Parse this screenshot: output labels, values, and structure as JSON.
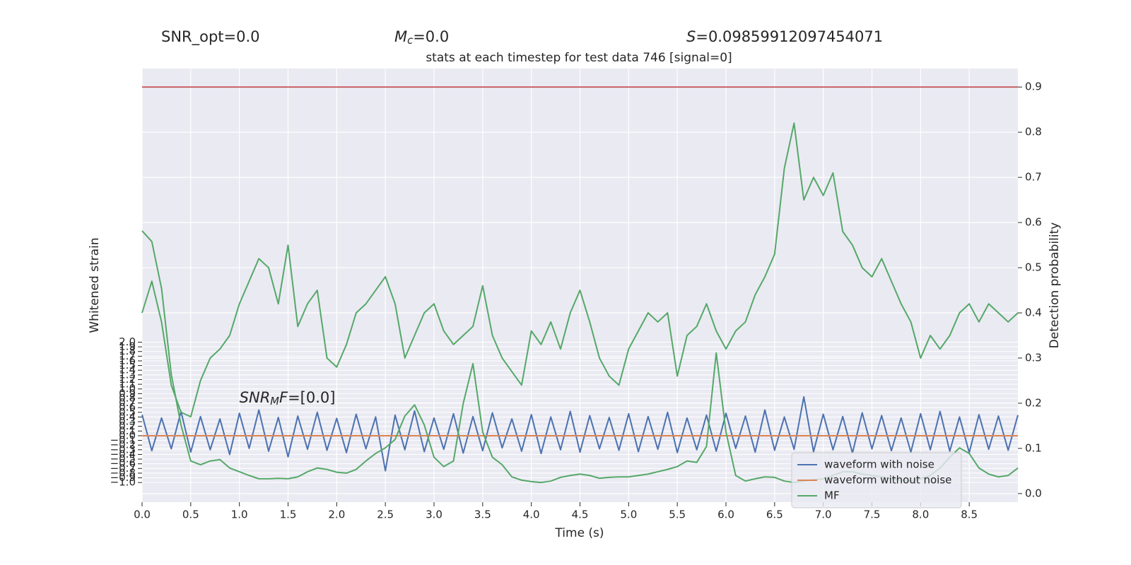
{
  "chart_data": {
    "type": "line",
    "title": "stats at each timestep for test data 746 [signal=0]",
    "header": [
      {
        "parts": [
          {
            "t": "SNR_opt=0.0"
          }
        ]
      },
      {
        "parts": [
          {
            "t": "M",
            "style": "italic"
          },
          {
            "t": "c",
            "style": "sub"
          },
          {
            "t": "=0.0"
          }
        ]
      },
      {
        "parts": [
          {
            "t": "S",
            "style": "italic"
          },
          {
            "t": "=0.09859912097454071"
          }
        ]
      }
    ],
    "annotation": {
      "parts": [
        {
          "t": "SNR",
          "style": "italic"
        },
        {
          "t": "M",
          "style": "sub"
        },
        {
          "t": "F",
          "style": "italic"
        },
        {
          "t": "=[0.0]"
        }
      ]
    },
    "xlabel": "Time (s)",
    "ylabel": "Whitened strain",
    "y2label": "Detection probability",
    "xlim": [
      0,
      9
    ],
    "ylim": [
      -1.42,
      7.85
    ],
    "y2lim": [
      -0.019,
      0.941
    ],
    "grid": true,
    "legend": "lower right",
    "xticks": [
      {
        "value": 0,
        "label": "0.0"
      },
      {
        "value": 0.5,
        "label": "0.5"
      },
      {
        "value": 1,
        "label": "1.0"
      },
      {
        "value": 1.5,
        "label": "1.5"
      },
      {
        "value": 2,
        "label": "2.0"
      },
      {
        "value": 2.5,
        "label": "2.5"
      },
      {
        "value": 3,
        "label": "3.0"
      },
      {
        "value": 3.5,
        "label": "3.5"
      },
      {
        "value": 4,
        "label": "4.0"
      },
      {
        "value": 4.5,
        "label": "4.5"
      },
      {
        "value": 5,
        "label": "5.0"
      },
      {
        "value": 5.5,
        "label": "5.5"
      },
      {
        "value": 6,
        "label": "6.0"
      },
      {
        "value": 6.5,
        "label": "6.5"
      },
      {
        "value": 7,
        "label": "7.0"
      },
      {
        "value": 7.5,
        "label": "7.5"
      },
      {
        "value": 8,
        "label": "8.0"
      },
      {
        "value": 8.5,
        "label": "8.5"
      }
    ],
    "yticks": [
      {
        "value": -1,
        "label": "−1.0"
      },
      {
        "value": -0.9,
        "label": "−0.9"
      },
      {
        "value": -0.8,
        "label": "−0.8"
      },
      {
        "value": -0.7,
        "label": "−0.7"
      },
      {
        "value": -0.6,
        "label": "−0.6"
      },
      {
        "value": -0.5,
        "label": "−0.5"
      },
      {
        "value": -0.4,
        "label": "−0.4"
      },
      {
        "value": -0.3,
        "label": "−0.3"
      },
      {
        "value": -0.2,
        "label": "−0.2"
      },
      {
        "value": -0.1,
        "label": "−0.1"
      },
      {
        "value": 0,
        "label": "0.0"
      },
      {
        "value": 0.1,
        "label": "0.1"
      },
      {
        "value": 0.2,
        "label": "0.2"
      },
      {
        "value": 0.3,
        "label": "0.3"
      },
      {
        "value": 0.4,
        "label": "0.4"
      },
      {
        "value": 0.5,
        "label": "0.5"
      },
      {
        "value": 0.6,
        "label": "0.6"
      },
      {
        "value": 0.7,
        "label": "0.7"
      },
      {
        "value": 0.8,
        "label": "0.8"
      },
      {
        "value": 0.9,
        "label": "0.9"
      },
      {
        "value": 1,
        "label": "1.0"
      },
      {
        "value": 1.1,
        "label": "1.1"
      },
      {
        "value": 1.2,
        "label": "1.2"
      },
      {
        "value": 1.3,
        "label": "1.3"
      },
      {
        "value": 1.4,
        "label": "1.4"
      },
      {
        "value": 1.5,
        "label": "1.5"
      },
      {
        "value": 1.6,
        "label": "1.6"
      },
      {
        "value": 1.7,
        "label": "1.7"
      },
      {
        "value": 1.8,
        "label": "1.8"
      },
      {
        "value": 1.9,
        "label": "1.9"
      },
      {
        "value": 2,
        "label": "2.0"
      }
    ],
    "y2ticks": [
      {
        "value": 0,
        "label": "0.0"
      },
      0.1,
      0.2,
      0.3,
      0.4,
      0.5,
      0.6,
      0.7,
      0.8,
      0.9
    ],
    "hlines": [
      {
        "value": 0.9,
        "axis": "y2",
        "color": "#c44e52"
      }
    ],
    "x": [
      0,
      0.1,
      0.2,
      0.3,
      0.4,
      0.5,
      0.6,
      0.7,
      0.8,
      0.9,
      1,
      1.1,
      1.2,
      1.3,
      1.4,
      1.5,
      1.6,
      1.7,
      1.8,
      1.9,
      2,
      2.1,
      2.2,
      2.3,
      2.4,
      2.5,
      2.6,
      2.7,
      2.8,
      2.9,
      3,
      3.1,
      3.2,
      3.3,
      3.4,
      3.5,
      3.6,
      3.7,
      3.8,
      3.9,
      4,
      4.1,
      4.2,
      4.3,
      4.4,
      4.5,
      4.6,
      4.7,
      4.8,
      4.9,
      5,
      5.1,
      5.2,
      5.3,
      5.4,
      5.5,
      5.6,
      5.7,
      5.8,
      5.9,
      6,
      6.1,
      6.2,
      6.3,
      6.4,
      6.5,
      6.6,
      6.7,
      6.8,
      6.9,
      7,
      7.1,
      7.2,
      7.3,
      7.4,
      7.5,
      7.6,
      7.7,
      7.8,
      7.9,
      8,
      8.1,
      8.2,
      8.3,
      8.4,
      8.5,
      8.6,
      8.7,
      8.8,
      8.9,
      9
    ],
    "series": [
      {
        "name": "waveform with noise",
        "color": "#4c72b0",
        "axis": "y",
        "values": [
          0.45,
          -0.32,
          0.38,
          -0.28,
          0.52,
          -0.35,
          0.41,
          -0.3,
          0.36,
          -0.4,
          0.48,
          -0.27,
          0.55,
          -0.33,
          0.39,
          -0.45,
          0.42,
          -0.29,
          0.5,
          -0.31,
          0.37,
          -0.36,
          0.46,
          -0.28,
          0.4,
          -0.75,
          0.44,
          -0.3,
          0.53,
          -0.34,
          0.38,
          -0.29,
          0.47,
          -0.37,
          0.41,
          -0.32,
          0.49,
          -0.26,
          0.36,
          -0.33,
          0.45,
          -0.38,
          0.4,
          -0.3,
          0.52,
          -0.35,
          0.43,
          -0.28,
          0.39,
          -0.31,
          0.47,
          -0.34,
          0.41,
          -0.29,
          0.5,
          -0.36,
          0.38,
          -0.3,
          0.44,
          -0.33,
          0.48,
          -0.27,
          0.42,
          -0.35,
          0.55,
          -0.31,
          0.4,
          -0.29,
          0.83,
          -0.34,
          0.46,
          -0.3,
          0.41,
          -0.37,
          0.49,
          -0.28,
          0.43,
          -0.32,
          0.38,
          -0.35,
          0.47,
          -0.3,
          0.52,
          -0.33,
          0.4,
          -0.36,
          0.45,
          -0.29,
          0.42,
          -0.31,
          0.44
        ]
      },
      {
        "name": "waveform without noise",
        "color": "#dd8452",
        "axis": "y",
        "values": [
          0,
          0,
          0,
          0,
          0,
          0,
          0,
          0,
          0,
          0,
          0,
          0,
          0,
          0,
          0,
          0,
          0,
          0,
          0,
          0,
          0,
          0,
          0,
          0,
          0,
          0,
          0,
          0,
          0,
          0,
          0,
          0,
          0,
          0,
          0,
          0,
          0,
          0,
          0,
          0,
          0,
          0,
          0,
          0,
          0,
          0,
          0,
          0,
          0,
          0,
          0,
          0,
          0,
          0,
          0,
          0,
          0,
          0,
          0,
          0,
          0,
          0,
          0,
          0,
          0,
          0,
          0,
          0,
          0,
          0,
          0,
          0,
          0,
          0,
          0,
          0,
          0,
          0,
          0,
          0,
          0,
          0,
          0,
          0,
          0,
          0,
          0,
          0,
          0,
          0,
          0
        ]
      },
      {
        "name": "MF",
        "color": "#55a868",
        "axis": "y",
        "values": [
          4.38,
          4.15,
          3.15,
          1.31,
          0.23,
          -0.54,
          -0.62,
          -0.54,
          -0.51,
          -0.69,
          -0.77,
          -0.85,
          -0.92,
          -0.92,
          -0.91,
          -0.92,
          -0.88,
          -0.77,
          -0.69,
          -0.72,
          -0.78,
          -0.8,
          -0.72,
          -0.54,
          -0.38,
          -0.26,
          -0.08,
          0.42,
          0.66,
          0.23,
          -0.46,
          -0.66,
          -0.54,
          0.69,
          1.54,
          0.08,
          -0.46,
          -0.62,
          -0.88,
          -0.95,
          -0.98,
          -1.0,
          -0.97,
          -0.89,
          -0.85,
          -0.82,
          -0.85,
          -0.91,
          -0.89,
          -0.88,
          -0.88,
          -0.85,
          -0.82,
          -0.77,
          -0.72,
          -0.66,
          -0.54,
          -0.57,
          -0.23,
          1.77,
          0.08,
          -0.85,
          -0.97,
          -0.92,
          -0.88,
          -0.89,
          -0.97,
          -1.0,
          -0.97,
          -0.94,
          -0.92,
          -0.85,
          -0.77,
          -0.77,
          -0.82,
          -0.85,
          -0.88,
          -0.92,
          -0.95,
          -0.97,
          -0.92,
          -0.85,
          -0.69,
          -0.46,
          -0.26,
          -0.38,
          -0.69,
          -0.82,
          -0.88,
          -0.85,
          -0.69
        ]
      },
      {
        "color": "#55a868",
        "axis": "y2",
        "values": [
          0.4,
          0.47,
          0.38,
          0.24,
          0.18,
          0.17,
          0.25,
          0.3,
          0.32,
          0.35,
          0.42,
          0.47,
          0.52,
          0.5,
          0.42,
          0.55,
          0.37,
          0.42,
          0.45,
          0.3,
          0.28,
          0.33,
          0.4,
          0.42,
          0.45,
          0.48,
          0.42,
          0.3,
          0.35,
          0.4,
          0.42,
          0.36,
          0.33,
          0.35,
          0.37,
          0.46,
          0.35,
          0.3,
          0.27,
          0.24,
          0.36,
          0.33,
          0.38,
          0.32,
          0.4,
          0.45,
          0.38,
          0.3,
          0.26,
          0.24,
          0.32,
          0.36,
          0.4,
          0.38,
          0.4,
          0.26,
          0.35,
          0.37,
          0.42,
          0.36,
          0.32,
          0.36,
          0.38,
          0.44,
          0.48,
          0.53,
          0.72,
          0.82,
          0.65,
          0.7,
          0.66,
          0.71,
          0.58,
          0.55,
          0.5,
          0.48,
          0.52,
          0.47,
          0.42,
          0.38,
          0.3,
          0.35,
          0.32,
          0.35,
          0.4,
          0.42,
          0.38,
          0.42,
          0.4,
          0.38,
          0.4
        ]
      }
    ]
  }
}
